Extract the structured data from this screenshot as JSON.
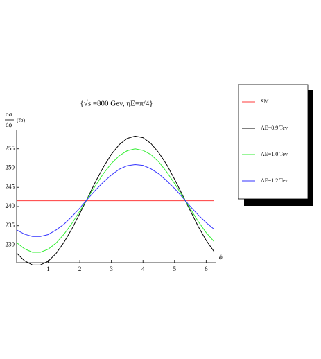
{
  "chart_data": {
    "type": "line",
    "title": "{√s =800 Gev, ηE=π/4}",
    "y_label_numerator": "dσ",
    "y_label_denominator": "dϕ",
    "y_label_unit": "(fb)",
    "x_label": "ϕ",
    "x": [
      0,
      0.25,
      0.5,
      0.75,
      1,
      1.25,
      1.5,
      1.75,
      2,
      2.25,
      2.5,
      2.75,
      3,
      3.25,
      3.5,
      3.75,
      4,
      4.25,
      4.5,
      4.75,
      5,
      5.25,
      5.5,
      5.75,
      6,
      6.25
    ],
    "series": [
      {
        "name": "SM",
        "color": "#ff3b3b",
        "values": [
          241.5,
          241.5,
          241.5,
          241.5,
          241.5,
          241.5,
          241.5,
          241.5,
          241.5,
          241.5,
          241.5,
          241.5,
          241.5,
          241.5,
          241.5,
          241.5,
          241.5,
          241.5,
          241.5,
          241.5,
          241.5,
          241.5,
          241.5,
          241.5,
          241.5,
          241.5
        ]
      },
      {
        "name": "ΛE=0.9 Tev",
        "color": "#000000",
        "values": [
          227.9,
          225.9,
          224.8,
          224.8,
          225.8,
          227.8,
          230.7,
          234.2,
          238.2,
          242.3,
          246.5,
          250.3,
          253.6,
          256.1,
          257.7,
          258.3,
          257.9,
          256.4,
          254.0,
          250.9,
          247.1,
          243.0,
          238.9,
          234.8,
          231.2,
          228.3
        ]
      },
      {
        "name": "ΛE=1.0 Tev",
        "color": "#33ee33",
        "values": [
          230.6,
          229.0,
          228.1,
          228.1,
          228.9,
          230.5,
          232.8,
          235.6,
          238.8,
          242.2,
          245.5,
          248.6,
          251.2,
          253.2,
          254.5,
          255.0,
          254.6,
          253.5,
          251.6,
          249.0,
          246.0,
          242.7,
          239.4,
          236.1,
          233.2,
          230.9
        ]
      },
      {
        "name": "ΛE=1.2 Tev",
        "color": "#3333ff",
        "values": [
          233.9,
          232.8,
          232.2,
          232.2,
          232.7,
          233.9,
          235.4,
          237.4,
          239.6,
          242.0,
          244.3,
          246.4,
          248.2,
          249.7,
          250.6,
          250.9,
          250.7,
          249.8,
          248.5,
          246.7,
          244.7,
          242.4,
          240.0,
          237.8,
          235.8,
          234.1
        ]
      }
    ],
    "xlim": [
      0,
      6.3
    ],
    "xticks": [
      1,
      2,
      3,
      4,
      5,
      6
    ],
    "ylim": [
      225.4,
      260
    ],
    "yticks": [
      230,
      235,
      240,
      245,
      250,
      255
    ]
  }
}
